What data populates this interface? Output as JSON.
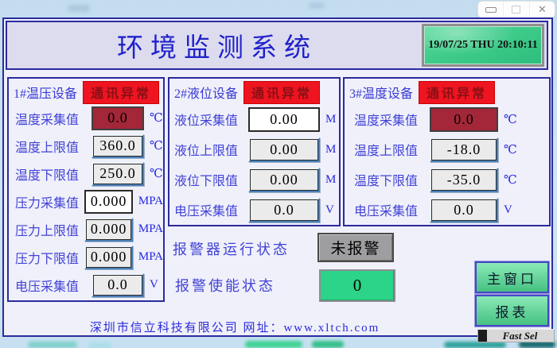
{
  "window_controls": {
    "minimize": "minimize",
    "maximize": "maximize",
    "close": "✕"
  },
  "header": {
    "title": "环境监测系统",
    "clock": "19/07/25 THU 20:10:11"
  },
  "panels": [
    {
      "name": "1#温压设备",
      "status_badge": "通讯异常",
      "rows": [
        {
          "label": "温度采集值",
          "value": "0.0",
          "unit": "℃",
          "kind": "alarm"
        },
        {
          "label": "温度上限值",
          "value": "360.0",
          "unit": "℃",
          "kind": "input"
        },
        {
          "label": "温度下限值",
          "value": "250.0",
          "unit": "℃",
          "kind": "input"
        },
        {
          "label": "压力采集值",
          "value": "0.000",
          "unit": "MPA",
          "kind": "readout"
        },
        {
          "label": "压力上限值",
          "value": "0.000",
          "unit": "MPA",
          "kind": "input"
        },
        {
          "label": "压力下限值",
          "value": "0.000",
          "unit": "MPA",
          "kind": "input"
        },
        {
          "label": "电压采集值",
          "value": "0.0",
          "unit": "V",
          "kind": "input"
        }
      ]
    },
    {
      "name": "2#液位设备",
      "status_badge": "通讯异常",
      "rows": [
        {
          "label": "液位采集值",
          "value": "0.00",
          "unit": "M",
          "kind": "readout"
        },
        {
          "label": "液位上限值",
          "value": "0.00",
          "unit": "M",
          "kind": "input"
        },
        {
          "label": "液位下限值",
          "value": "0.00",
          "unit": "M",
          "kind": "input"
        },
        {
          "label": "电压采集值",
          "value": "0.0",
          "unit": "V",
          "kind": "input"
        }
      ]
    },
    {
      "name": "3#温度设备",
      "status_badge": "通讯异常",
      "rows": [
        {
          "label": "温度采集值",
          "value": "0.0",
          "unit": "℃",
          "kind": "alarm"
        },
        {
          "label": "温度上限值",
          "value": "-18.0",
          "unit": "℃",
          "kind": "input"
        },
        {
          "label": "温度下限值",
          "value": "-35.0",
          "unit": "℃",
          "kind": "input"
        },
        {
          "label": "电压采集值",
          "value": "0.0",
          "unit": "V",
          "kind": "input"
        }
      ]
    }
  ],
  "alarm": {
    "run_label": "报警器运行状态",
    "run_value": "未报警",
    "enable_label": "报警使能状态",
    "enable_value": "0"
  },
  "footer": {
    "text": "深圳市信立科技有限公司   网址：www.xltch.com"
  },
  "nav": {
    "main_window": "主窗口",
    "report": "报表",
    "fast_sel": "Fast Sel"
  },
  "colors": {
    "border_blue": "#2b2b9e",
    "label_blue": "#4343d6",
    "title_blue": "#2121cc",
    "badge_red": "#ee1420",
    "badge_text": "#8a1016",
    "alarm_maroon": "#a32639",
    "clock_green": "#35c685",
    "nav_button_green": "#63dba2",
    "enable_green": "#2bd488",
    "status_gray": "#9e9ea0"
  }
}
